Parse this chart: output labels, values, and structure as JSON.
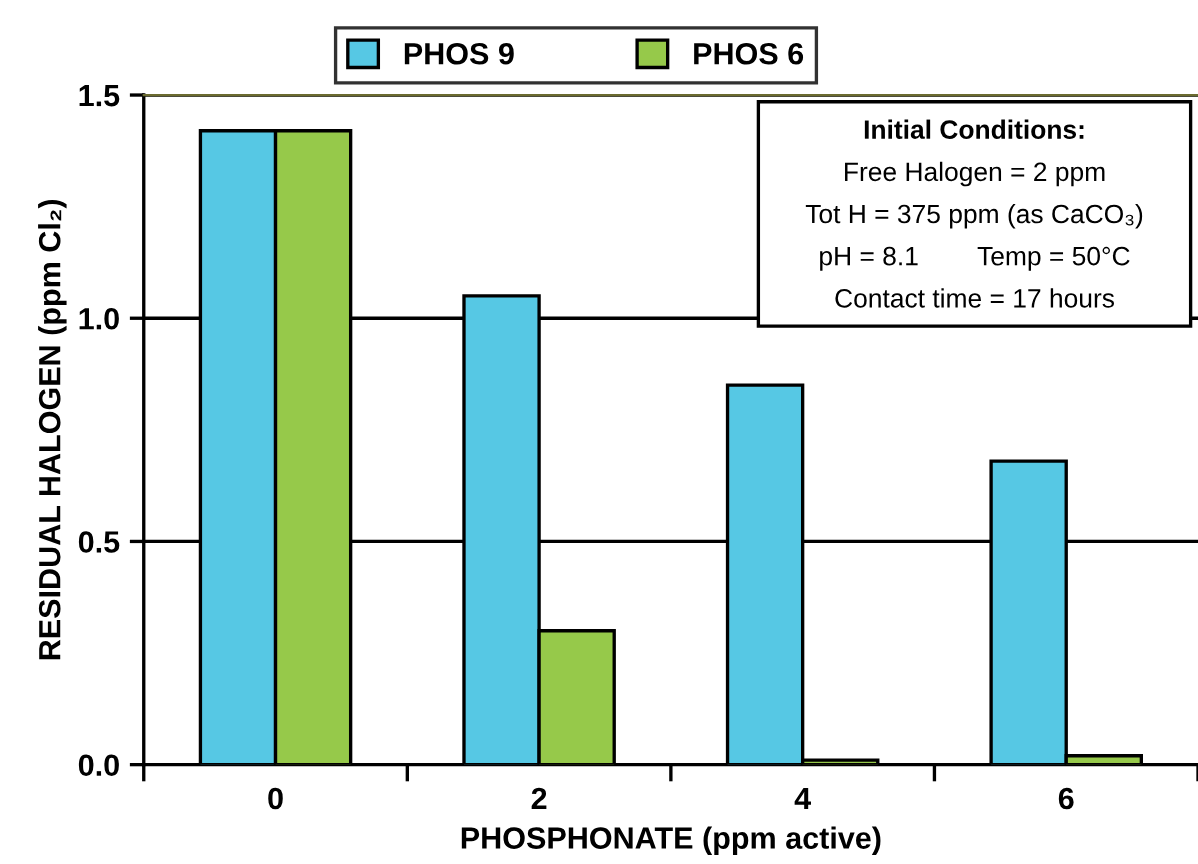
{
  "chart_data": {
    "type": "bar",
    "xlabel": "PHOSPHONATE (ppm active)",
    "ylabel": "RESIDUAL HALOGEN (ppm Cl₂)",
    "categories": [
      "0",
      "2",
      "4",
      "6"
    ],
    "series": [
      {
        "name": "PHOS 9",
        "color": "#56c8e4",
        "values": [
          1.42,
          1.05,
          0.85,
          0.68
        ]
      },
      {
        "name": "PHOS 6",
        "color": "#96c94a",
        "values": [
          1.42,
          0.3,
          0.01,
          0.02
        ]
      }
    ],
    "ylim": [
      0,
      1.5
    ],
    "yticks": [
      {
        "value": 0,
        "label": "0.0"
      },
      {
        "value": 0.5,
        "label": "0.5"
      },
      {
        "value": 1,
        "label": "1.0"
      },
      {
        "value": 1.5,
        "label": "1.5"
      }
    ],
    "grid": "y",
    "legend": "top",
    "annotations": [
      "Initial Conditions:",
      "Free Halogen = 2 ppm",
      "Tot H = 375 ppm (as CaCO₃)",
      "pH = 8.1        Temp = 50°C",
      "Contact time = 17 hours"
    ]
  }
}
